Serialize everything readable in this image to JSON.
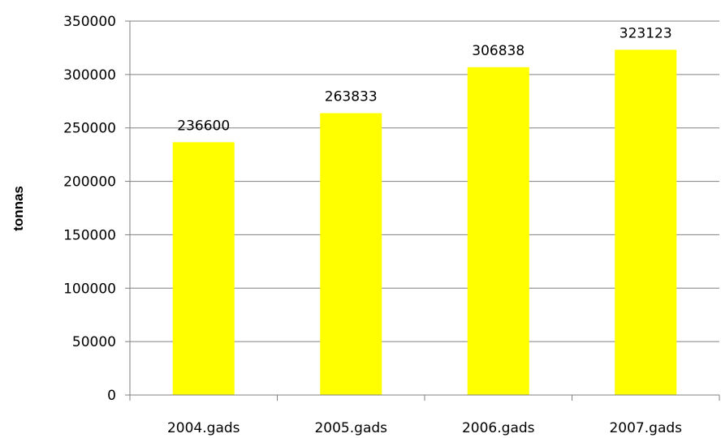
{
  "chart_data": {
    "type": "bar",
    "categories": [
      "2004.gads",
      "2005.gads",
      "2006.gads",
      "2007.gads"
    ],
    "values": [
      236600,
      263833,
      306838,
      323123
    ],
    "data_labels": [
      "236600",
      "263833",
      "306838",
      "323123"
    ],
    "title": "",
    "xlabel": "",
    "ylabel": "tonnas",
    "ylim": [
      0,
      350000
    ],
    "yticks": [
      0,
      50000,
      100000,
      150000,
      200000,
      250000,
      300000,
      350000
    ],
    "ytick_labels": [
      "0",
      "50000",
      "100000",
      "150000",
      "200000",
      "250000",
      "300000",
      "350000"
    ],
    "grid": true,
    "legend": false,
    "colors": {
      "bar": "#FFFF00",
      "grid": "#808080",
      "axis": "#808080"
    }
  }
}
